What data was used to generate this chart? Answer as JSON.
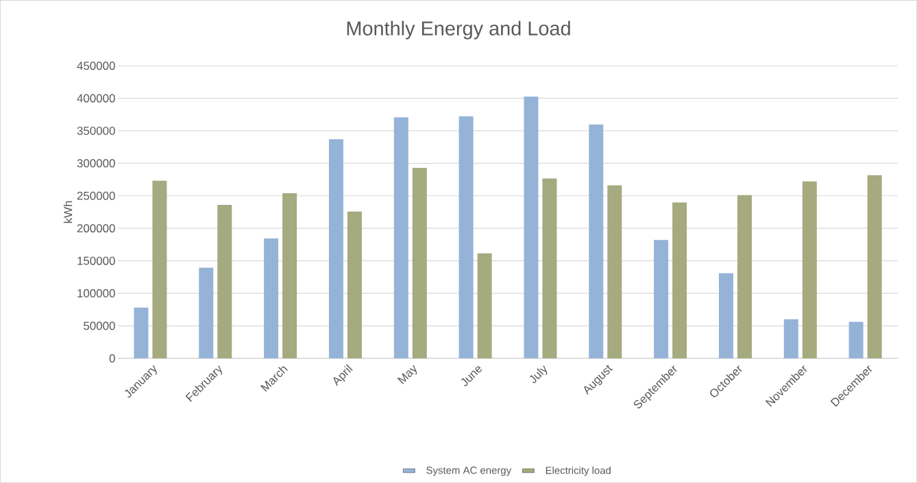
{
  "chart_data": {
    "type": "bar",
    "title": "Monthly Energy and Load",
    "ylabel": "kWh",
    "categories": [
      "January",
      "February",
      "March",
      "April",
      "May",
      "June",
      "July",
      "August",
      "September",
      "October",
      "November",
      "December"
    ],
    "series": [
      {
        "name": "System AC energy",
        "color": "#95b3d7",
        "values": [
          78000,
          139500,
          184500,
          337000,
          370600,
          372200,
          402600,
          359500,
          182000,
          130900,
          60100,
          56200
        ]
      },
      {
        "name": "Electricity load",
        "color": "#a5aa7f",
        "values": [
          273300,
          236000,
          254000,
          225900,
          293000,
          161600,
          276500,
          266200,
          239700,
          251200,
          272100,
          281600
        ]
      }
    ],
    "ylim": [
      0,
      450000
    ],
    "yticks": [
      0,
      50000,
      100000,
      150000,
      200000,
      250000,
      300000,
      350000,
      400000,
      450000
    ],
    "grid": "y",
    "legend": "bottom"
  }
}
